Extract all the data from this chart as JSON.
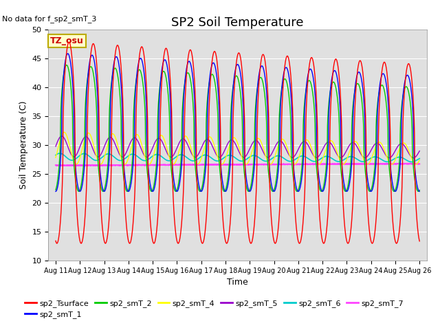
{
  "title": "SP2 Soil Temperature",
  "no_data_text": "No data for f_sp2_smT_3",
  "tz_label": "TZ_osu",
  "ylabel": "Soil Temperature (C)",
  "xlabel": "Time",
  "ylim": [
    10,
    50
  ],
  "yticks": [
    10,
    15,
    20,
    25,
    30,
    35,
    40,
    45,
    50
  ],
  "xtick_labels": [
    "Aug 11",
    "Aug 12",
    "Aug 13",
    "Aug 14",
    "Aug 15",
    "Aug 16",
    "Aug 17",
    "Aug 18",
    "Aug 19",
    "Aug 20",
    "Aug 21",
    "Aug 22",
    "Aug 23",
    "Aug 24",
    "Aug 25",
    "Aug 26"
  ],
  "xtick_positions": [
    0,
    1,
    2,
    3,
    4,
    5,
    6,
    7,
    8,
    9,
    10,
    11,
    12,
    13,
    14,
    15
  ],
  "series_colors": {
    "sp2_Tsurface": "#ff0000",
    "sp2_smT_1": "#0000ff",
    "sp2_smT_2": "#00cc00",
    "sp2_smT_4": "#ffff00",
    "sp2_smT_5": "#9900cc",
    "sp2_smT_6": "#00cccc",
    "sp2_smT_7": "#ff44ff"
  },
  "bg_color": "#e0e0e0",
  "title_fontsize": 13,
  "label_fontsize": 9,
  "tick_fontsize": 8
}
